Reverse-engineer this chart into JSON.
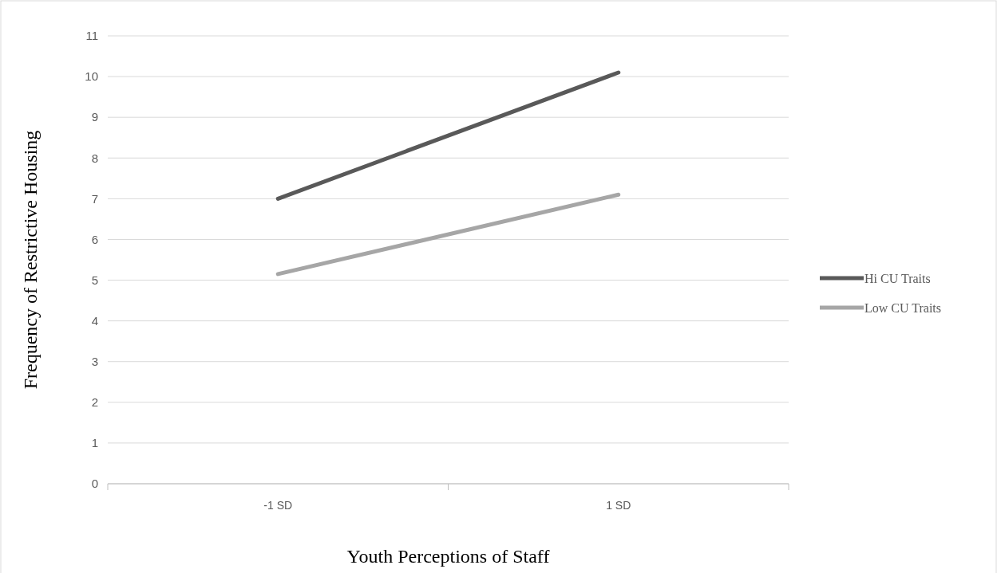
{
  "chart_data": {
    "type": "line",
    "xlabel": "Youth Perceptions of Staff",
    "ylabel": "Frequency of Restrictive Housing",
    "categories": [
      "-1 SD",
      "1 SD"
    ],
    "series": [
      {
        "name": "Hi CU Traits",
        "color": "#595959",
        "values": [
          7.0,
          10.1
        ]
      },
      {
        "name": "Low CU Traits",
        "color": "#a6a6a6",
        "values": [
          5.15,
          7.1
        ]
      }
    ],
    "ylim": [
      0,
      11
    ],
    "yticks": [
      0,
      1,
      2,
      3,
      4,
      5,
      6,
      7,
      8,
      9,
      10,
      11
    ],
    "grid": "y",
    "legend": "right",
    "marker": "none",
    "line_style": "solid"
  }
}
